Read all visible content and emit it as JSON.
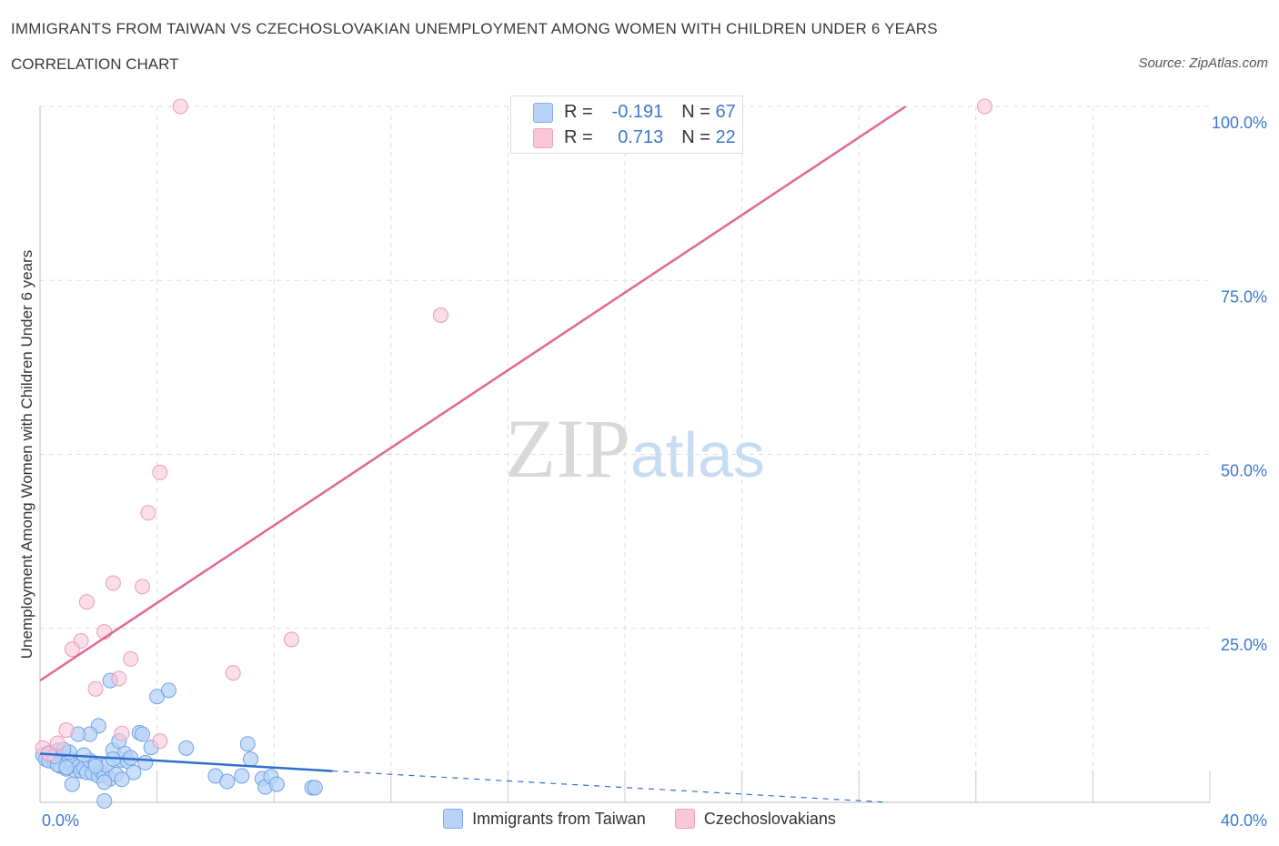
{
  "header": {
    "title": "IMMIGRANTS FROM TAIWAN VS CZECHOSLOVAKIAN UNEMPLOYMENT AMONG WOMEN WITH CHILDREN UNDER 6 YEARS",
    "subtitle": "CORRELATION CHART",
    "source": "Source: ZipAtlas.com"
  },
  "stats": {
    "r_label": "R =",
    "n_label": "N =",
    "series1": {
      "r": "-0.191",
      "n": "67"
    },
    "series2": {
      "r": "0.713",
      "n": "22"
    }
  },
  "watermark": {
    "zip": "ZIP",
    "atlas": "atlas"
  },
  "colors": {
    "blue_fill": "#b8d3f7",
    "blue_stroke": "#6fa3e3",
    "blue_line": "#2f6fcf",
    "pink_fill": "#f9c8d8",
    "pink_stroke": "#ec9ab6",
    "pink_line": "#e3678f",
    "tick_text": "#3a78d0",
    "grid": "#dddddd"
  },
  "chart_data": {
    "type": "scatter",
    "title": "IMMIGRANTS FROM TAIWAN VS CZECHOSLOVAKIAN UNEMPLOYMENT AMONG WOMEN WITH CHILDREN UNDER 6 YEARS",
    "xlabel": "",
    "ylabel": "Unemployment Among Women with Children Under 6 years",
    "xlim": [
      0,
      40
    ],
    "ylim": [
      0,
      100
    ],
    "x_tick_labels": [
      "0.0%",
      "40.0%"
    ],
    "y_ticks": [
      25,
      50,
      75,
      100
    ],
    "y_tick_labels": [
      "25.0%",
      "50.0%",
      "75.0%",
      "100.0%"
    ],
    "grid": true,
    "series": [
      {
        "name": "Immigrants from Taiwan",
        "color": "#b8d3f7",
        "trend": {
          "x": [
            0,
            10
          ],
          "y": [
            7.0,
            4.5
          ],
          "dashed_to": [
            29,
            0
          ]
        },
        "points": [
          [
            0.1,
            6.8
          ],
          [
            0.2,
            6.2
          ],
          [
            0.3,
            7.1
          ],
          [
            0.4,
            6.5
          ],
          [
            0.5,
            5.8
          ],
          [
            0.6,
            7.4
          ],
          [
            0.7,
            5.2
          ],
          [
            0.8,
            6.9
          ],
          [
            0.9,
            4.8
          ],
          [
            1.0,
            6.3
          ],
          [
            1.1,
            5.5
          ],
          [
            1.2,
            4.6
          ],
          [
            1.3,
            5.1
          ],
          [
            1.4,
            4.5
          ],
          [
            1.5,
            4.9
          ],
          [
            1.6,
            4.3
          ],
          [
            1.7,
            6.0
          ],
          [
            1.8,
            4.2
          ],
          [
            1.9,
            5.6
          ],
          [
            2.0,
            3.8
          ],
          [
            2.1,
            4.4
          ],
          [
            2.2,
            3.9
          ],
          [
            2.3,
            5.3
          ],
          [
            2.4,
            3.4
          ],
          [
            2.5,
            7.5
          ],
          [
            2.6,
            4.0
          ],
          [
            2.7,
            8.8
          ],
          [
            2.8,
            6.1
          ],
          [
            2.9,
            7.0
          ],
          [
            3.0,
            5.9
          ],
          [
            3.2,
            4.3
          ],
          [
            3.4,
            10.0
          ],
          [
            3.5,
            9.8
          ],
          [
            3.6,
            5.7
          ],
          [
            3.8,
            7.9
          ],
          [
            4.0,
            15.2
          ],
          [
            4.4,
            16.1
          ],
          [
            5.0,
            7.8
          ],
          [
            1.1,
            2.6
          ],
          [
            2.2,
            2.9
          ],
          [
            2.8,
            3.3
          ],
          [
            2.2,
            0.2
          ],
          [
            2.4,
            17.5
          ],
          [
            2.0,
            11.0
          ],
          [
            1.7,
            9.8
          ],
          [
            1.3,
            9.8
          ],
          [
            2.5,
            6.2
          ],
          [
            1.0,
            7.2
          ],
          [
            0.3,
            6.0
          ],
          [
            0.6,
            5.4
          ],
          [
            0.9,
            5.0
          ],
          [
            1.5,
            6.8
          ],
          [
            3.1,
            6.4
          ],
          [
            0.5,
            6.6
          ],
          [
            6.0,
            3.8
          ],
          [
            6.4,
            3.0
          ],
          [
            6.9,
            3.8
          ],
          [
            7.1,
            8.4
          ],
          [
            7.2,
            6.2
          ],
          [
            7.6,
            3.4
          ],
          [
            7.7,
            2.2
          ],
          [
            7.9,
            3.7
          ],
          [
            8.1,
            2.6
          ],
          [
            9.3,
            2.1
          ],
          [
            9.4,
            2.1
          ],
          [
            0.8,
            7.6
          ],
          [
            1.9,
            5.2
          ]
        ]
      },
      {
        "name": "Czechoslovakians",
        "color": "#f9c8d8",
        "trend": {
          "x": [
            0,
            29.6
          ],
          "y": [
            17.5,
            100
          ]
        },
        "points": [
          [
            4.8,
            100
          ],
          [
            32.3,
            100
          ],
          [
            13.7,
            70.0
          ],
          [
            4.1,
            47.4
          ],
          [
            3.7,
            41.6
          ],
          [
            2.5,
            31.5
          ],
          [
            3.5,
            31.0
          ],
          [
            1.6,
            28.8
          ],
          [
            2.2,
            24.5
          ],
          [
            8.6,
            23.4
          ],
          [
            1.4,
            23.2
          ],
          [
            1.1,
            22.0
          ],
          [
            3.1,
            20.6
          ],
          [
            6.6,
            18.6
          ],
          [
            2.7,
            17.8
          ],
          [
            1.9,
            16.3
          ],
          [
            0.9,
            10.4
          ],
          [
            2.8,
            9.9
          ],
          [
            4.1,
            8.8
          ],
          [
            0.6,
            8.5
          ],
          [
            0.1,
            7.8
          ],
          [
            0.3,
            7.0
          ]
        ]
      }
    ]
  },
  "legend": {
    "series1_label": "Immigrants from Taiwan",
    "series2_label": "Czechoslovakians"
  }
}
